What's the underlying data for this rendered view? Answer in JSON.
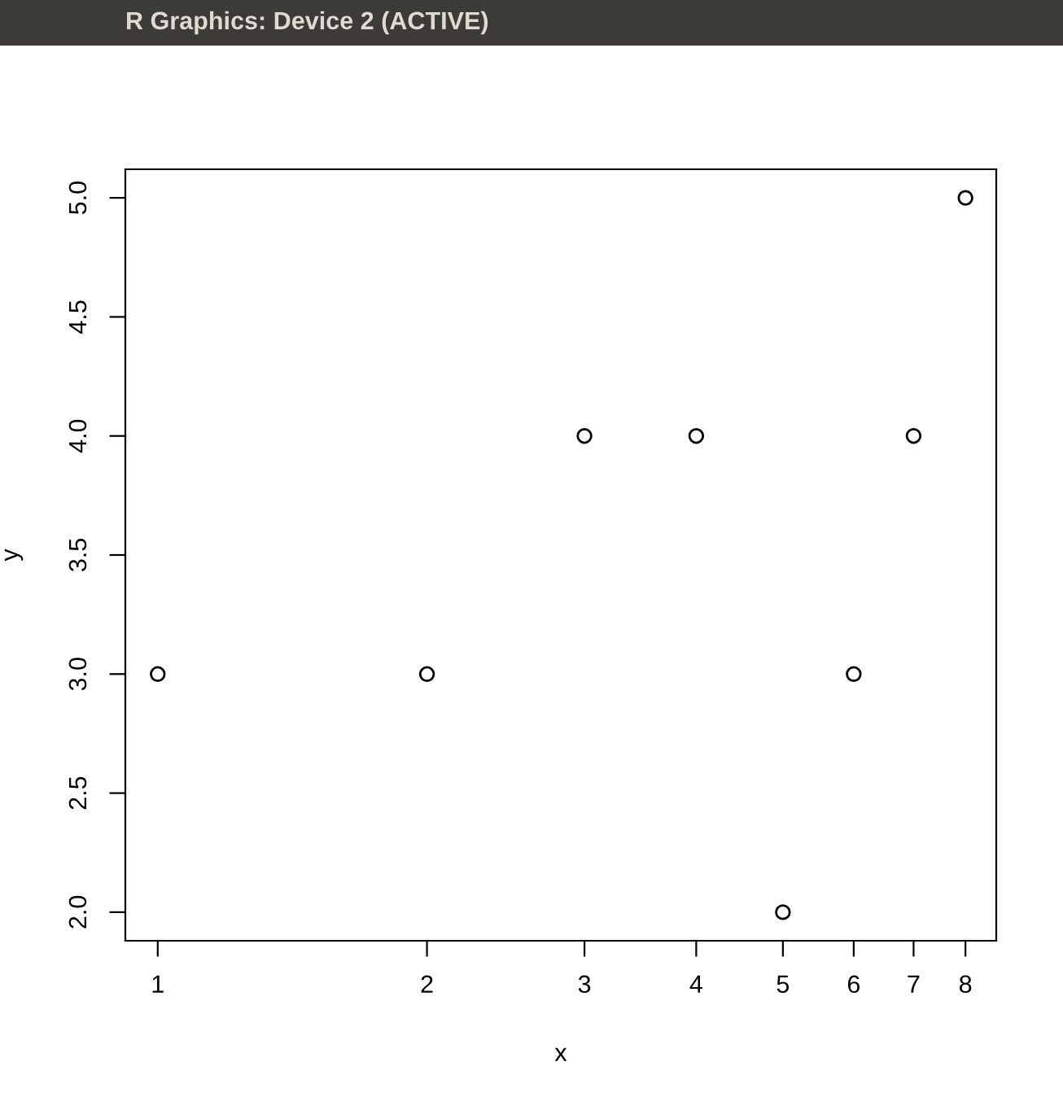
{
  "chart_data": {
    "type": "scatter",
    "title": "R Graphics: Device 2 (ACTIVE)",
    "xlabel": "x",
    "ylabel": "y",
    "x": [
      1,
      2,
      3,
      4,
      5,
      6,
      7,
      8
    ],
    "series": [
      {
        "color": "#000000",
        "values": [
          3,
          3,
          4,
          4,
          2,
          3,
          4,
          5
        ]
      }
    ],
    "log": "x",
    "xlim": [
      0.92,
      8.66
    ],
    "ylim": [
      1.88,
      5.12
    ],
    "xticks": [
      1,
      2,
      3,
      4,
      5,
      6,
      7,
      8
    ],
    "yticks": [
      {
        "value": 2,
        "label": "2.0"
      },
      {
        "value": 2.5,
        "label": "2.5"
      },
      {
        "value": 3,
        "label": "3.0"
      },
      {
        "value": 3.5,
        "label": "3.5"
      },
      {
        "value": 4,
        "label": "4.0"
      },
      {
        "value": 4.5,
        "label": "4.5"
      },
      {
        "value": 5,
        "label": "5.0"
      }
    ],
    "marker": "circle",
    "grid": false
  }
}
